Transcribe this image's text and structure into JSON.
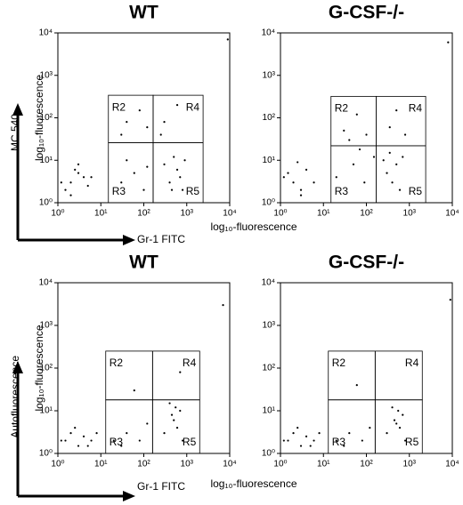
{
  "chart_data": [
    {
      "type": "scatter",
      "title": "WT",
      "ylabel": "log₁₀-fluorescence",
      "annotations": [
        "MC 540",
        "Gr-1 FITC"
      ],
      "xscale": "log",
      "yscale": "log",
      "color": "#000000",
      "xlim": [
        1,
        10000
      ],
      "ylim": [
        1,
        10000
      ],
      "xticks": [
        {
          "value": 1,
          "label": "10⁰"
        },
        {
          "value": 10,
          "label": "10¹"
        },
        {
          "value": 100,
          "label": "10²"
        },
        {
          "value": 1000,
          "label": "10³"
        },
        {
          "value": 10000,
          "label": "10⁴"
        }
      ],
      "yticks": [
        {
          "value": 1,
          "label": "10⁰"
        },
        {
          "value": 10,
          "label": "10¹"
        },
        {
          "value": 100,
          "label": "10²"
        },
        {
          "value": 1000,
          "label": "10³"
        },
        {
          "value": 10000,
          "label": "10⁴"
        }
      ],
      "regions": [
        {
          "label": "R2",
          "xlim": [
            15,
            165
          ],
          "ylim": [
            26,
            340
          ]
        },
        {
          "label": "R4",
          "xlim": [
            165,
            2400
          ],
          "ylim": [
            26,
            340
          ]
        },
        {
          "label": "R3",
          "xlim": [
            15,
            165
          ],
          "ylim": [
            1,
            26
          ]
        },
        {
          "label": "R5",
          "xlim": [
            165,
            2400
          ],
          "ylim": [
            1,
            26
          ]
        }
      ],
      "x": [
        2,
        3,
        1.5,
        4,
        2.5,
        1.2,
        5,
        3,
        6,
        2,
        30,
        60,
        100,
        40,
        120,
        400,
        600,
        800,
        500,
        700,
        300,
        900,
        450,
        40,
        80,
        30,
        120,
        300,
        600,
        250,
        9000
      ],
      "y": [
        3,
        5,
        2,
        4,
        6,
        3,
        2.5,
        8,
        4,
        1.5,
        3,
        5,
        2,
        10,
        7,
        3,
        6,
        2,
        12,
        4,
        8,
        10,
        2,
        80,
        150,
        40,
        60,
        80,
        200,
        40,
        7000
      ]
    },
    {
      "type": "scatter",
      "title": "G-CSF-/-",
      "xlabel": "log₁₀-fluorescence",
      "xscale": "log",
      "yscale": "log",
      "color": "#000000",
      "xlim": [
        1,
        10000
      ],
      "ylim": [
        1,
        10000
      ],
      "xticks": [
        {
          "value": 1,
          "label": "10⁰"
        },
        {
          "value": 10,
          "label": "10¹"
        },
        {
          "value": 100,
          "label": "10²"
        },
        {
          "value": 1000,
          "label": "10³"
        },
        {
          "value": 10000,
          "label": "10⁴"
        }
      ],
      "yticks": [
        {
          "value": 1,
          "label": "10⁰"
        },
        {
          "value": 10,
          "label": "10¹"
        },
        {
          "value": 100,
          "label": "10²"
        },
        {
          "value": 1000,
          "label": "10³"
        },
        {
          "value": 10000,
          "label": "10⁴"
        }
      ],
      "regions": [
        {
          "label": "R2",
          "xlim": [
            15,
            170
          ],
          "ylim": [
            22,
            320
          ]
        },
        {
          "label": "R4",
          "xlim": [
            170,
            2400
          ],
          "ylim": [
            22,
            320
          ]
        },
        {
          "label": "R3",
          "xlim": [
            15,
            170
          ],
          "ylim": [
            1,
            22
          ]
        },
        {
          "label": "R5",
          "xlim": [
            170,
            2400
          ],
          "ylim": [
            1,
            22
          ]
        }
      ],
      "x": [
        2,
        1.5,
        3,
        4,
        1.2,
        2.5,
        6,
        3,
        20,
        50,
        90,
        150,
        70,
        300,
        500,
        400,
        700,
        350,
        600,
        250,
        30,
        60,
        100,
        40,
        350,
        500,
        800,
        8000
      ],
      "y": [
        3,
        5,
        2,
        6,
        4,
        9,
        3,
        1.5,
        4,
        8,
        3,
        12,
        18,
        5,
        8,
        3,
        12,
        15,
        2,
        10,
        50,
        120,
        40,
        30,
        60,
        150,
        40,
        6000
      ]
    },
    {
      "type": "scatter",
      "title": "WT",
      "ylabel": "log₁₀-fluorescence",
      "annotations": [
        "Autofluorescence",
        "Gr-1 FITC"
      ],
      "xscale": "log",
      "yscale": "log",
      "color": "#000000",
      "xlim": [
        1,
        10000
      ],
      "ylim": [
        1,
        10000
      ],
      "xticks": [
        {
          "value": 1,
          "label": "10⁰"
        },
        {
          "value": 10,
          "label": "10¹"
        },
        {
          "value": 100,
          "label": "10²"
        },
        {
          "value": 1000,
          "label": "10³"
        },
        {
          "value": 10000,
          "label": "10⁴"
        }
      ],
      "yticks": [
        {
          "value": 1,
          "label": "10⁰"
        },
        {
          "value": 10,
          "label": "10¹"
        },
        {
          "value": 100,
          "label": "10²"
        },
        {
          "value": 1000,
          "label": "10³"
        },
        {
          "value": 10000,
          "label": "10⁴"
        }
      ],
      "regions": [
        {
          "label": "R2",
          "xlim": [
            13,
            160
          ],
          "ylim": [
            18,
            250
          ]
        },
        {
          "label": "R4",
          "xlim": [
            160,
            2000
          ],
          "ylim": [
            18,
            250
          ]
        },
        {
          "label": "R3",
          "xlim": [
            13,
            160
          ],
          "ylim": [
            1,
            18
          ]
        },
        {
          "label": "R5",
          "xlim": [
            160,
            2000
          ],
          "ylim": [
            1,
            18
          ]
        }
      ],
      "x": [
        1.5,
        2,
        3,
        4,
        6,
        8,
        2.5,
        1.2,
        5,
        20,
        40,
        80,
        120,
        30,
        300,
        500,
        700,
        400,
        600,
        800,
        450,
        550,
        60,
        700,
        7000
      ],
      "y": [
        2,
        3,
        1.5,
        2.5,
        2,
        3,
        4,
        2,
        1.5,
        2,
        3,
        2,
        5,
        1.5,
        3,
        6,
        10,
        15,
        4,
        2,
        8,
        12,
        30,
        80,
        3000
      ]
    },
    {
      "type": "scatter",
      "title": "G-CSF-/-",
      "xlabel": "log₁₀-fluorescence",
      "xscale": "log",
      "yscale": "log",
      "color": "#000000",
      "xlim": [
        1,
        10000
      ],
      "ylim": [
        1,
        10000
      ],
      "xticks": [
        {
          "value": 1,
          "label": "10⁰"
        },
        {
          "value": 10,
          "label": "10¹"
        },
        {
          "value": 100,
          "label": "10²"
        },
        {
          "value": 1000,
          "label": "10³"
        },
        {
          "value": 10000,
          "label": "10⁴"
        }
      ],
      "yticks": [
        {
          "value": 1,
          "label": "10⁰"
        },
        {
          "value": 10,
          "label": "10¹"
        },
        {
          "value": 100,
          "label": "10²"
        },
        {
          "value": 1000,
          "label": "10³"
        },
        {
          "value": 10000,
          "label": "10⁴"
        }
      ],
      "regions": [
        {
          "label": "R2",
          "xlim": [
            13,
            160
          ],
          "ylim": [
            18,
            250
          ]
        },
        {
          "label": "R4",
          "xlim": [
            160,
            2000
          ],
          "ylim": [
            18,
            250
          ]
        },
        {
          "label": "R3",
          "xlim": [
            13,
            160
          ],
          "ylim": [
            1,
            18
          ]
        },
        {
          "label": "R5",
          "xlim": [
            160,
            2000
          ],
          "ylim": [
            1,
            18
          ]
        }
      ],
      "x": [
        1.5,
        2,
        3,
        4,
        6,
        8,
        2.5,
        1.2,
        5,
        20,
        40,
        80,
        120,
        30,
        300,
        500,
        700,
        400,
        600,
        800,
        450,
        550,
        60,
        9000
      ],
      "y": [
        2,
        3,
        1.5,
        2.5,
        2,
        3,
        4,
        2,
        1.5,
        2,
        3,
        2,
        4,
        1.5,
        3,
        5,
        8,
        12,
        4,
        2,
        6,
        10,
        40,
        4000
      ]
    }
  ]
}
